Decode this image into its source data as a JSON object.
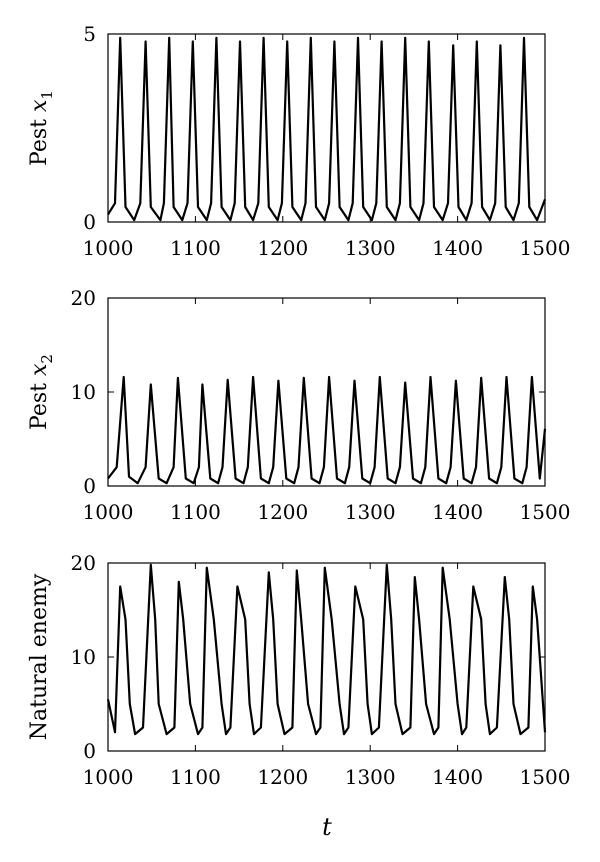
{
  "chart_data": [
    {
      "type": "line",
      "ylabel": "Pest x1",
      "ylabel_main": "Pest ",
      "ylabel_var": "x",
      "ylabel_sub": "1",
      "xlim": [
        1000,
        1500
      ],
      "ylim": [
        0,
        5
      ],
      "xticks": [
        1000,
        1100,
        1200,
        1300,
        1400,
        1500
      ],
      "yticks": [
        0,
        5
      ],
      "series": [
        {
          "x": [
            1000,
            1008,
            1014,
            1020,
            1030,
            1037,
            1043,
            1049,
            1060,
            1064,
            1070,
            1075,
            1085,
            1091,
            1097,
            1103,
            1113,
            1118,
            1124,
            1130,
            1140,
            1145,
            1151,
            1157,
            1166,
            1172,
            1178,
            1184,
            1194,
            1199,
            1205,
            1211,
            1221,
            1226,
            1232,
            1238,
            1248,
            1253,
            1259,
            1265,
            1275,
            1280,
            1286,
            1292,
            1302,
            1307,
            1313,
            1319,
            1329,
            1334,
            1340,
            1346,
            1356,
            1361,
            1367,
            1373,
            1383,
            1389,
            1395,
            1401,
            1410,
            1416,
            1422,
            1428,
            1437,
            1443,
            1449,
            1455,
            1464,
            1470,
            1476,
            1482,
            1491,
            1500
          ],
          "y": [
            0.2,
            0.5,
            4.9,
            0.4,
            0.05,
            0.5,
            4.8,
            0.4,
            0.05,
            0.5,
            4.9,
            0.4,
            0.05,
            0.5,
            4.8,
            0.4,
            0.05,
            0.5,
            4.9,
            0.4,
            0.05,
            0.5,
            4.8,
            0.4,
            0.05,
            0.5,
            4.9,
            0.4,
            0.05,
            0.5,
            4.8,
            0.4,
            0.05,
            0.5,
            4.9,
            0.4,
            0.05,
            0.5,
            4.8,
            0.4,
            0.05,
            0.5,
            4.9,
            0.4,
            0.05,
            0.5,
            4.8,
            0.4,
            0.05,
            0.5,
            4.9,
            0.4,
            0.05,
            0.5,
            4.8,
            0.4,
            0.05,
            0.5,
            4.7,
            0.4,
            0.05,
            0.5,
            4.8,
            0.4,
            0.05,
            0.5,
            4.7,
            0.4,
            0.05,
            0.5,
            4.9,
            0.4,
            0.05,
            0.6
          ]
        }
      ]
    },
    {
      "type": "line",
      "ylabel": "Pest x2",
      "ylabel_main": "Pest ",
      "ylabel_var": "x",
      "ylabel_sub": "2",
      "xlim": [
        1000,
        1500
      ],
      "ylim": [
        0,
        20
      ],
      "xticks": [
        1000,
        1100,
        1200,
        1300,
        1400,
        1500
      ],
      "yticks": [
        0,
        10,
        20
      ],
      "series": [
        {
          "x": [
            1000,
            1010,
            1018,
            1024,
            1034,
            1043,
            1049,
            1058,
            1067,
            1075,
            1080,
            1089,
            1098,
            1104,
            1108,
            1117,
            1126,
            1131,
            1137,
            1146,
            1155,
            1160,
            1166,
            1175,
            1184,
            1189,
            1195,
            1204,
            1213,
            1218,
            1224,
            1233,
            1242,
            1247,
            1253,
            1262,
            1271,
            1276,
            1282,
            1291,
            1300,
            1305,
            1311,
            1320,
            1329,
            1334,
            1340,
            1349,
            1358,
            1363,
            1369,
            1378,
            1387,
            1392,
            1398,
            1407,
            1416,
            1421,
            1427,
            1436,
            1445,
            1450,
            1456,
            1465,
            1474,
            1479,
            1485,
            1494,
            1500
          ],
          "y": [
            0.8,
            2,
            11.6,
            1,
            0.3,
            2,
            10.8,
            0.8,
            0.3,
            2,
            11.5,
            0.8,
            0.3,
            2,
            10.8,
            0.8,
            0.3,
            2,
            11.3,
            0.8,
            0.3,
            2,
            11.6,
            0.8,
            0.3,
            2,
            11.2,
            0.8,
            0.3,
            2,
            11.5,
            0.8,
            0.3,
            2,
            11.6,
            0.8,
            0.3,
            2,
            11.2,
            0.8,
            0.3,
            2,
            11.6,
            0.8,
            0.3,
            2,
            11.0,
            0.8,
            0.3,
            2,
            11.6,
            0.8,
            0.3,
            2,
            11.2,
            0.8,
            0.3,
            2,
            11.5,
            0.8,
            0.3,
            2,
            11.6,
            0.8,
            0.3,
            2,
            11.6,
            0.8,
            6.1
          ]
        }
      ]
    },
    {
      "type": "line",
      "ylabel": "Natural enemy",
      "xlabel": "t",
      "xlim": [
        1000,
        1500
      ],
      "ylim": [
        0,
        20
      ],
      "xticks": [
        1000,
        1100,
        1200,
        1300,
        1400,
        1500
      ],
      "yticks": [
        0,
        10,
        20
      ],
      "series": [
        {
          "x": [
            1000,
            1008,
            1014,
            1020,
            1025,
            1031,
            1040,
            1049,
            1054,
            1058,
            1067,
            1076,
            1081,
            1086,
            1094,
            1103,
            1108,
            1113,
            1121,
            1130,
            1135,
            1140,
            1148,
            1157,
            1162,
            1167,
            1175,
            1184,
            1189,
            1194,
            1202,
            1211,
            1216,
            1221,
            1229,
            1238,
            1243,
            1248,
            1256,
            1265,
            1270,
            1275,
            1283,
            1292,
            1297,
            1302,
            1310,
            1319,
            1324,
            1329,
            1337,
            1346,
            1351,
            1356,
            1364,
            1373,
            1378,
            1383,
            1391,
            1400,
            1405,
            1410,
            1418,
            1427,
            1432,
            1437,
            1445,
            1454,
            1459,
            1464,
            1472,
            1481,
            1486,
            1491,
            1500
          ],
          "y": [
            5.5,
            2,
            17.5,
            14,
            5,
            1.8,
            2.5,
            19.8,
            14,
            5,
            1.8,
            2.5,
            18,
            14,
            5,
            1.8,
            2.5,
            19.5,
            14,
            5,
            1.8,
            2.5,
            17.5,
            14,
            5,
            1.8,
            2.5,
            19.0,
            14,
            5,
            1.8,
            2.5,
            19.2,
            14,
            5,
            1.8,
            2.5,
            19.5,
            14,
            5,
            1.8,
            2.5,
            17.5,
            14,
            5,
            1.8,
            2.5,
            19.8,
            14,
            5,
            1.8,
            2.5,
            18.5,
            14,
            5,
            1.8,
            2.5,
            19.5,
            14,
            5,
            1.8,
            2.5,
            17.5,
            14,
            5,
            1.8,
            2.5,
            18.5,
            14,
            5,
            1.8,
            2.5,
            17.5,
            14,
            2
          ]
        }
      ]
    }
  ]
}
